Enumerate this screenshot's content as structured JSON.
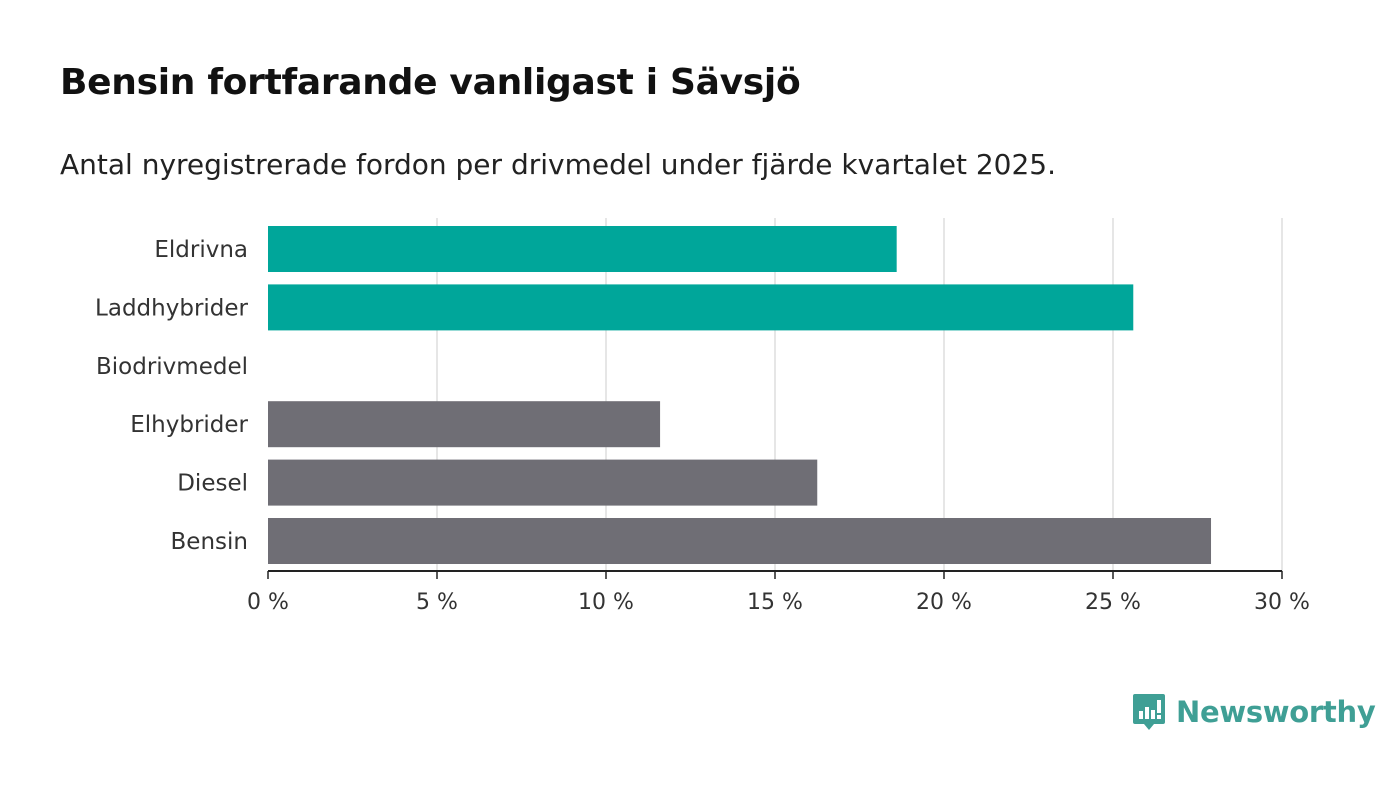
{
  "title": "Bensin fortfarande vanligast i Sävsjö",
  "subtitle": "Antal nyregistrerade fordon per drivmedel under fjärde kvartalet 2025.",
  "brand": {
    "name": "Newsworthy",
    "color": "#3f9f95",
    "icon": "newsworthy-logo-icon"
  },
  "chart_data": {
    "type": "bar",
    "orientation": "horizontal",
    "categories": [
      "Eldrivna",
      "Laddhybrider",
      "Biodrivmedel",
      "Elhybrider",
      "Diesel",
      "Bensin"
    ],
    "values": [
      18.6,
      25.6,
      0,
      11.6,
      16.25,
      27.9
    ],
    "colors": [
      "#00a69a",
      "#00a69a",
      "#00a69a",
      "#6f6e75",
      "#6f6e75",
      "#6f6e75"
    ],
    "xlim": [
      0,
      30
    ],
    "xticks": [
      0,
      5,
      10,
      15,
      20,
      25,
      30
    ],
    "xtick_labels": [
      "0 %",
      "5 %",
      "10 %",
      "15 %",
      "20 %",
      "25 %",
      "30 %"
    ],
    "grid": "vertical",
    "grid_color": "#dddddd"
  }
}
